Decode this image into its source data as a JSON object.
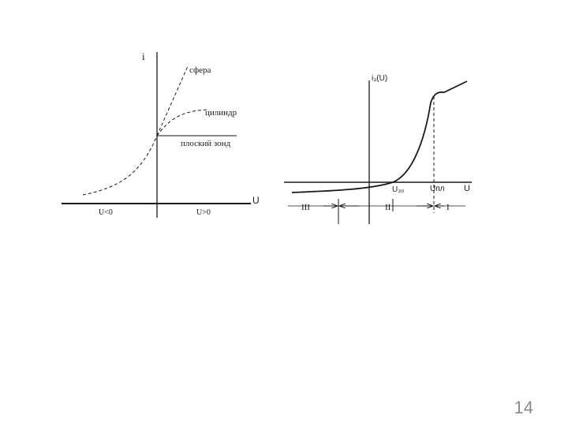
{
  "left_figure": {
    "y_axis_label": "i",
    "x_axis_label": "U",
    "curve_labels": {
      "sphere": "сфера",
      "cylinder": "цилиндр",
      "plane": "плоский зонд"
    },
    "region_labels": {
      "negative": "U<0",
      "positive": "U>0"
    }
  },
  "right_figure": {
    "y_axis_label": "i₃(U)",
    "x_axis_label": "U",
    "tick_labels": {
      "floating": "U₃₀",
      "plasma": "Uпл"
    },
    "region_labels": {
      "region_3": "III",
      "region_2": "II",
      "region_1": "I"
    }
  },
  "page_number": "14",
  "colors": {
    "line": "#1a1a1a",
    "page_number": "#8c8c8c",
    "background": "#ffffff"
  }
}
